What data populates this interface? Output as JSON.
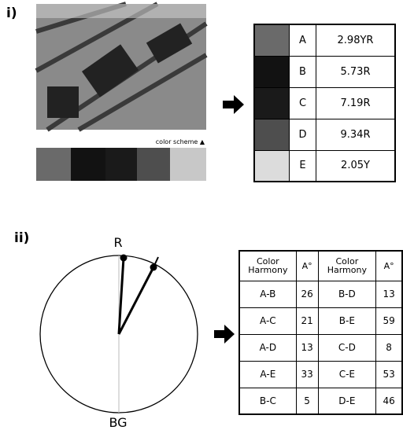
{
  "panel_i": {
    "label": "i)",
    "scheme_caption": "color scheme ▲",
    "table": {
      "rows": [
        [
          "A",
          "2.98YR"
        ],
        [
          "B",
          "5.73R"
        ],
        [
          "C",
          "7.19R"
        ],
        [
          "D",
          "9.34R"
        ],
        [
          "E",
          "2.05Y"
        ]
      ],
      "colors": [
        "#6a6a6a",
        "#121212",
        "#1a1a1a",
        "#4e4e4e",
        "#dcdcdc"
      ]
    }
  },
  "panel_ii": {
    "label": "ii)",
    "wheel": {
      "top_label": "R",
      "bottom_label": "BG"
    },
    "table": {
      "header": [
        "Color Harmony",
        "A°",
        "Color Harmony",
        "A°"
      ],
      "rows": [
        [
          "A-B",
          26,
          "B-D",
          13
        ],
        [
          "A-C",
          21,
          "B-E",
          59
        ],
        [
          "A-D",
          13,
          "C-D",
          8
        ],
        [
          "A-E",
          33,
          "C-E",
          53
        ],
        [
          "B-C",
          5,
          "D-E",
          46
        ]
      ]
    }
  }
}
